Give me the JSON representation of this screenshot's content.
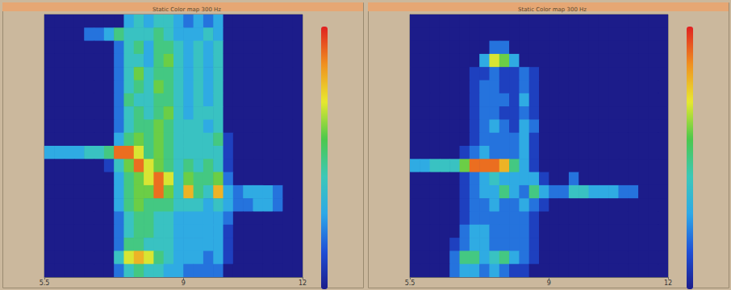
{
  "chart_data": [
    {
      "type": "heatmap",
      "title": "Static Color map 300 Hz",
      "xlim": [
        5.5,
        12
      ],
      "xticks": [
        5.5,
        9,
        12
      ],
      "ylim": [
        0,
        20
      ],
      "tick_labels": "x",
      "color_range": [
        0,
        10
      ],
      "cells": [
        [
          0,
          0,
          0,
          0,
          0,
          0,
          0,
          0,
          3,
          4,
          3,
          4,
          4,
          3,
          2,
          3,
          2,
          3,
          0,
          0,
          0,
          0,
          0,
          0,
          0,
          0
        ],
        [
          0,
          0,
          0,
          0,
          2,
          2,
          3,
          5,
          4,
          4,
          4,
          5,
          4,
          3,
          3,
          3,
          4,
          3,
          0,
          0,
          0,
          0,
          0,
          0,
          0,
          0
        ],
        [
          0,
          0,
          0,
          0,
          0,
          0,
          0,
          2,
          4,
          5,
          3,
          5,
          5,
          4,
          3,
          4,
          3,
          4,
          0,
          0,
          0,
          0,
          0,
          0,
          0,
          0
        ],
        [
          0,
          0,
          0,
          0,
          0,
          0,
          0,
          2,
          4,
          4,
          3,
          5,
          6,
          4,
          3,
          4,
          3,
          4,
          0,
          0,
          0,
          0,
          0,
          0,
          0,
          0
        ],
        [
          0,
          0,
          0,
          0,
          0,
          0,
          0,
          2,
          4,
          6,
          4,
          5,
          5,
          4,
          3,
          4,
          3,
          4,
          0,
          0,
          0,
          0,
          0,
          0,
          0,
          0
        ],
        [
          0,
          0,
          0,
          0,
          0,
          0,
          0,
          2,
          4,
          5,
          4,
          6,
          5,
          4,
          3,
          4,
          3,
          4,
          0,
          0,
          0,
          0,
          0,
          0,
          0,
          0
        ],
        [
          0,
          0,
          0,
          0,
          0,
          0,
          0,
          2,
          5,
          4,
          4,
          5,
          5,
          4,
          3,
          4,
          3,
          4,
          0,
          0,
          0,
          0,
          0,
          0,
          0,
          0
        ],
        [
          0,
          0,
          0,
          0,
          0,
          0,
          0,
          2,
          4,
          5,
          4,
          5,
          6,
          4,
          3,
          4,
          4,
          4,
          0,
          0,
          0,
          0,
          0,
          0,
          0,
          0
        ],
        [
          0,
          0,
          0,
          0,
          0,
          0,
          0,
          2,
          4,
          5,
          5,
          6,
          5,
          4,
          4,
          4,
          3,
          4,
          0,
          0,
          0,
          0,
          0,
          0,
          0,
          0
        ],
        [
          0,
          0,
          0,
          0,
          0,
          0,
          0,
          3,
          5,
          6,
          5,
          6,
          5,
          4,
          4,
          4,
          4,
          5,
          1,
          0,
          0,
          0,
          0,
          0,
          0,
          0
        ],
        [
          3,
          3,
          3,
          3,
          4,
          4,
          5,
          9,
          9,
          7,
          5,
          6,
          5,
          4,
          4,
          4,
          4,
          4,
          1,
          0,
          0,
          0,
          0,
          0,
          0,
          0
        ],
        [
          0,
          0,
          0,
          0,
          0,
          0,
          1,
          4,
          6,
          9,
          7,
          6,
          5,
          4,
          5,
          4,
          5,
          4,
          1,
          0,
          0,
          0,
          0,
          0,
          0,
          0
        ],
        [
          0,
          0,
          0,
          0,
          0,
          0,
          0,
          3,
          5,
          6,
          7,
          9,
          7,
          4,
          6,
          5,
          5,
          6,
          2,
          0,
          0,
          0,
          0,
          0,
          0,
          0
        ],
        [
          0,
          0,
          0,
          0,
          0,
          0,
          0,
          3,
          5,
          6,
          6,
          9,
          6,
          4,
          8,
          5,
          4,
          8,
          3,
          2,
          3,
          3,
          3,
          2,
          0,
          0
        ],
        [
          0,
          0,
          0,
          0,
          0,
          0,
          0,
          3,
          5,
          6,
          5,
          5,
          5,
          4,
          4,
          4,
          3,
          4,
          3,
          2,
          2,
          3,
          3,
          2,
          0,
          0
        ],
        [
          0,
          0,
          0,
          0,
          0,
          0,
          0,
          2,
          4,
          5,
          5,
          4,
          4,
          3,
          3,
          3,
          3,
          3,
          2,
          0,
          0,
          0,
          0,
          0,
          0,
          0
        ],
        [
          0,
          0,
          0,
          0,
          0,
          0,
          0,
          2,
          4,
          5,
          5,
          4,
          4,
          3,
          3,
          3,
          3,
          3,
          1,
          0,
          0,
          0,
          0,
          0,
          0,
          0
        ],
        [
          0,
          0,
          0,
          0,
          0,
          0,
          0,
          2,
          5,
          5,
          4,
          4,
          4,
          3,
          3,
          3,
          3,
          3,
          1,
          0,
          0,
          0,
          0,
          0,
          0,
          0
        ],
        [
          0,
          0,
          0,
          0,
          0,
          0,
          0,
          4,
          7,
          8,
          7,
          5,
          4,
          3,
          3,
          3,
          2,
          3,
          1,
          0,
          0,
          0,
          0,
          0,
          0,
          0
        ],
        [
          0,
          0,
          0,
          0,
          0,
          0,
          0,
          2,
          4,
          5,
          4,
          4,
          3,
          3,
          2,
          2,
          2,
          2,
          0,
          0,
          0,
          0,
          0,
          0,
          0,
          0
        ]
      ]
    },
    {
      "type": "heatmap",
      "title": "Static Color map 300 Hz",
      "xlim": [
        5.5,
        12
      ],
      "xticks": [
        5.5,
        9,
        12
      ],
      "ylim": [
        0,
        20
      ],
      "tick_labels": "x",
      "color_range": [
        0,
        10
      ],
      "cells": [
        [
          0,
          0,
          0,
          0,
          0,
          0,
          0,
          0,
          0,
          0,
          0,
          0,
          0,
          0,
          0,
          0,
          0,
          0,
          0,
          0,
          0,
          0,
          0,
          0,
          0,
          0
        ],
        [
          0,
          0,
          0,
          0,
          0,
          0,
          0,
          0,
          0,
          0,
          0,
          0,
          0,
          0,
          0,
          0,
          0,
          0,
          0,
          0,
          0,
          0,
          0,
          0,
          0,
          0
        ],
        [
          0,
          0,
          0,
          0,
          0,
          0,
          0,
          0,
          2,
          2,
          0,
          0,
          0,
          0,
          0,
          0,
          0,
          0,
          0,
          0,
          0,
          0,
          0,
          0,
          0,
          0
        ],
        [
          0,
          0,
          0,
          0,
          0,
          0,
          0,
          3,
          7,
          6,
          3,
          0,
          0,
          0,
          0,
          0,
          0,
          0,
          0,
          0,
          0,
          0,
          0,
          0,
          0,
          0
        ],
        [
          0,
          0,
          0,
          0,
          0,
          0,
          1,
          1,
          2,
          1,
          1,
          2,
          1,
          0,
          0,
          0,
          0,
          0,
          0,
          0,
          0,
          0,
          0,
          0,
          0,
          0
        ],
        [
          0,
          0,
          0,
          0,
          0,
          0,
          1,
          2,
          2,
          1,
          1,
          2,
          1,
          0,
          0,
          0,
          0,
          0,
          0,
          0,
          0,
          0,
          0,
          0,
          0,
          0
        ],
        [
          0,
          0,
          0,
          0,
          0,
          0,
          1,
          2,
          2,
          2,
          1,
          3,
          1,
          0,
          0,
          0,
          0,
          0,
          0,
          0,
          0,
          0,
          0,
          0,
          0,
          0
        ],
        [
          0,
          0,
          0,
          0,
          0,
          0,
          1,
          2,
          2,
          1,
          1,
          2,
          1,
          0,
          0,
          0,
          0,
          0,
          0,
          0,
          0,
          0,
          0,
          0,
          0,
          0
        ],
        [
          0,
          0,
          0,
          0,
          0,
          0,
          1,
          2,
          3,
          2,
          1,
          3,
          2,
          0,
          0,
          0,
          0,
          0,
          0,
          0,
          0,
          0,
          0,
          0,
          0,
          0
        ],
        [
          0,
          0,
          0,
          0,
          0,
          0,
          1,
          2,
          2,
          2,
          2,
          3,
          1,
          0,
          0,
          0,
          0,
          0,
          0,
          0,
          0,
          0,
          0,
          0,
          0,
          0
        ],
        [
          0,
          0,
          0,
          0,
          0,
          1,
          2,
          3,
          2,
          2,
          2,
          3,
          1,
          0,
          0,
          0,
          0,
          0,
          0,
          0,
          0,
          0,
          0,
          0,
          0,
          0
        ],
        [
          3,
          3,
          4,
          4,
          4,
          6,
          9,
          9,
          9,
          8,
          5,
          3,
          1,
          0,
          0,
          0,
          0,
          0,
          0,
          0,
          0,
          0,
          0,
          0,
          0,
          0
        ],
        [
          0,
          0,
          0,
          0,
          0,
          1,
          2,
          3,
          4,
          3,
          3,
          3,
          3,
          1,
          0,
          0,
          2,
          0,
          0,
          0,
          0,
          0,
          0,
          0,
          0,
          0
        ],
        [
          0,
          0,
          0,
          0,
          0,
          1,
          2,
          3,
          3,
          5,
          3,
          2,
          5,
          3,
          2,
          2,
          4,
          4,
          3,
          3,
          3,
          2,
          2,
          0,
          0,
          0
        ],
        [
          0,
          0,
          0,
          0,
          0,
          1,
          2,
          2,
          3,
          2,
          2,
          3,
          2,
          1,
          0,
          0,
          0,
          0,
          0,
          0,
          0,
          0,
          0,
          0,
          0,
          0
        ],
        [
          0,
          0,
          0,
          0,
          0,
          1,
          2,
          2,
          2,
          2,
          2,
          2,
          1,
          0,
          0,
          0,
          0,
          0,
          0,
          0,
          0,
          0,
          0,
          0,
          0,
          0
        ],
        [
          0,
          0,
          0,
          0,
          0,
          2,
          3,
          3,
          2,
          2,
          2,
          2,
          1,
          0,
          0,
          0,
          0,
          0,
          0,
          0,
          0,
          0,
          0,
          0,
          0,
          0
        ],
        [
          0,
          0,
          0,
          0,
          1,
          2,
          3,
          3,
          2,
          2,
          2,
          2,
          1,
          0,
          0,
          0,
          0,
          0,
          0,
          0,
          0,
          0,
          0,
          0,
          0,
          0
        ],
        [
          0,
          0,
          0,
          0,
          2,
          5,
          5,
          3,
          4,
          5,
          3,
          2,
          1,
          0,
          0,
          0,
          0,
          0,
          0,
          0,
          0,
          0,
          0,
          0,
          0,
          0
        ],
        [
          0,
          0,
          0,
          0,
          2,
          3,
          3,
          2,
          3,
          2,
          1,
          1,
          0,
          0,
          0,
          0,
          0,
          0,
          0,
          0,
          0,
          0,
          0,
          0,
          0,
          0
        ]
      ]
    }
  ]
}
